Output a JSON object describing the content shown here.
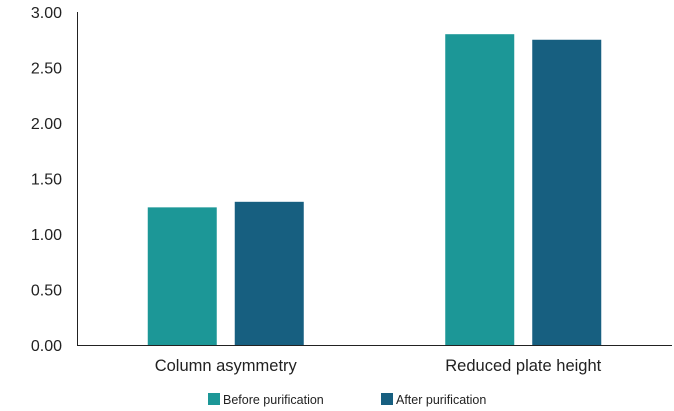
{
  "chart_data": {
    "type": "bar",
    "categories": [
      "Column asymmetry",
      "Reduced plate height"
    ],
    "series": [
      {
        "name": "Before purification",
        "values": [
          1.24,
          2.8
        ],
        "color": "#1c9797"
      },
      {
        "name": "After purification",
        "values": [
          1.29,
          2.75
        ],
        "color": "#175f80"
      }
    ],
    "ylim": [
      0,
      3
    ],
    "yticks": [
      0,
      0.5,
      1,
      1.5,
      2,
      2.5,
      3
    ],
    "ytick_labels": [
      "0.00",
      "0.50",
      "1.00",
      "1.50",
      "2.00",
      "2.50",
      "3.00"
    ],
    "title": "",
    "xlabel": "",
    "ylabel": "",
    "grid": false,
    "legend_position": "bottom-center",
    "axis_color": "#222222"
  }
}
